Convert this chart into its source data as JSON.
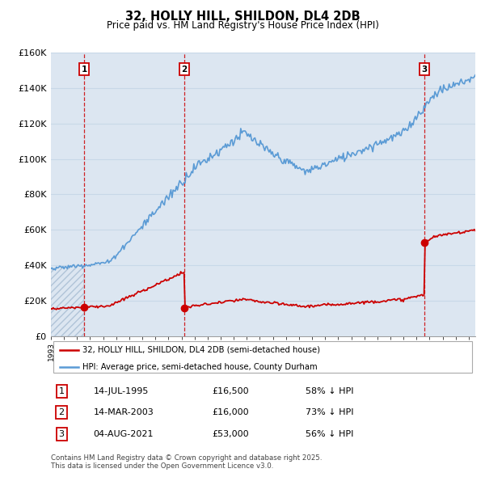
{
  "title": "32, HOLLY HILL, SHILDON, DL4 2DB",
  "subtitle": "Price paid vs. HM Land Registry's House Price Index (HPI)",
  "legend_property": "32, HOLLY HILL, SHILDON, DL4 2DB (semi-detached house)",
  "legend_hpi": "HPI: Average price, semi-detached house, County Durham",
  "sale_events": [
    {
      "label": "1",
      "date": "14-JUL-1995",
      "price": 16500,
      "pct": "58%",
      "year": 1995.54
    },
    {
      "label": "2",
      "date": "14-MAR-2003",
      "price": 16000,
      "pct": "73%",
      "year": 2003.2
    },
    {
      "label": "3",
      "date": "04-AUG-2021",
      "price": 53000,
      "pct": "56%",
      "year": 2021.59
    }
  ],
  "footnote1": "Contains HM Land Registry data © Crown copyright and database right 2025.",
  "footnote2": "This data is licensed under the Open Government Licence v3.0.",
  "ylim": [
    0,
    160000
  ],
  "yticks": [
    0,
    20000,
    40000,
    60000,
    80000,
    100000,
    120000,
    140000,
    160000
  ],
  "ytick_labels": [
    "£0",
    "£20K",
    "£40K",
    "£60K",
    "£80K",
    "£100K",
    "£120K",
    "£140K",
    "£160K"
  ],
  "hpi_color": "#5b9bd5",
  "property_color": "#cc0000",
  "fill_color": "#dce6f1",
  "hatch_fill_color": "#dce6f1",
  "background_color": "#ffffff",
  "grid_color": "#c8d8e8",
  "xstart": 1993.0,
  "xend": 2025.5
}
